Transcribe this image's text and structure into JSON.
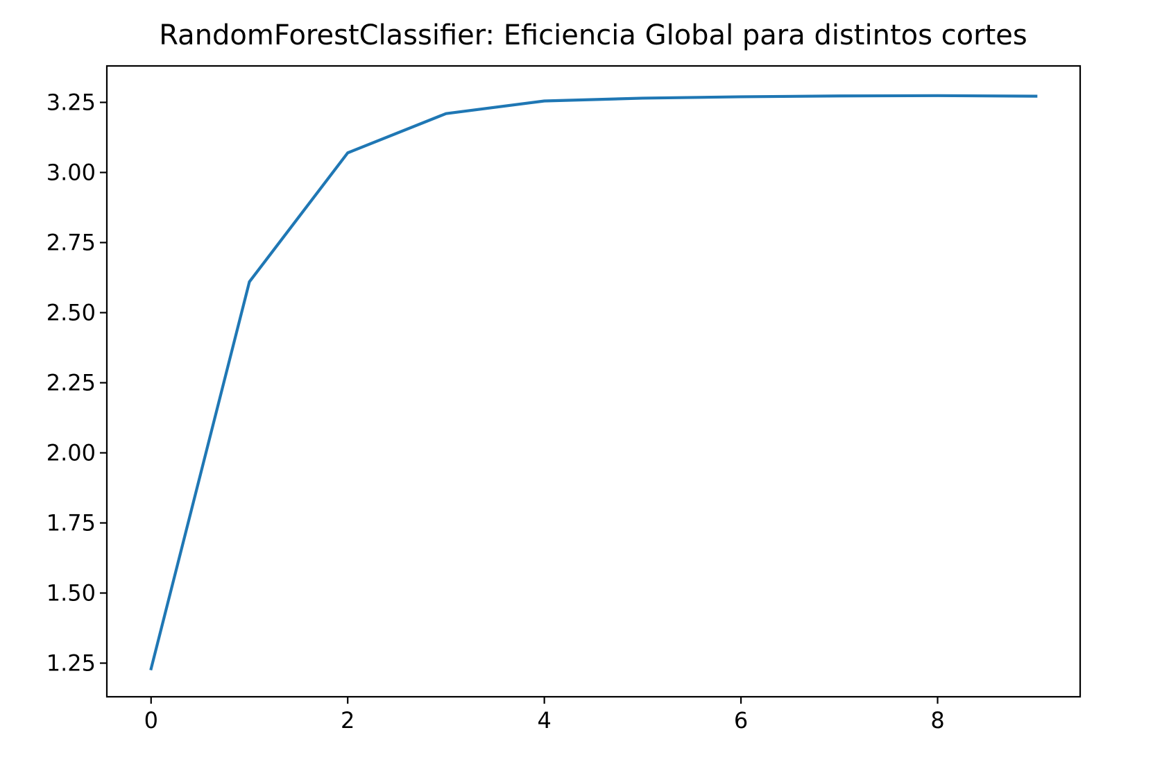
{
  "chart_data": {
    "type": "line",
    "title": "RandomForestClassifier: Eficiencia Global para distintos cortes",
    "xlabel": "",
    "ylabel": "",
    "xlim": [
      -0.45,
      9.45
    ],
    "ylim": [
      1.13,
      3.38
    ],
    "x_ticks": [
      0,
      2,
      4,
      6,
      8
    ],
    "x_tick_labels": [
      "0",
      "2",
      "4",
      "6",
      "8"
    ],
    "y_ticks": [
      1.25,
      1.5,
      1.75,
      2.0,
      2.25,
      2.5,
      2.75,
      3.0,
      3.25
    ],
    "y_tick_labels": [
      "1.25",
      "1.50",
      "1.75",
      "2.00",
      "2.25",
      "2.50",
      "2.75",
      "3.00",
      "3.25"
    ],
    "grid": false,
    "legend": "none",
    "series": [
      {
        "color": "#1f77b4",
        "x": [
          0,
          1,
          2,
          3,
          4,
          5,
          6,
          7,
          8,
          9
        ],
        "values": [
          1.23,
          2.61,
          3.07,
          3.21,
          3.255,
          3.265,
          3.27,
          3.273,
          3.274,
          3.272
        ]
      }
    ]
  }
}
